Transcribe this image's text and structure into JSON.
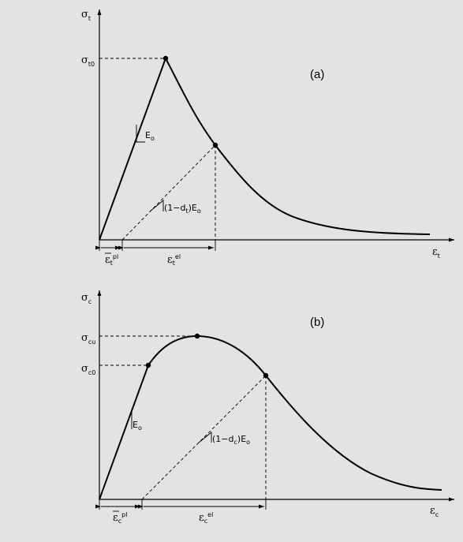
{
  "panel_a": {
    "tag": "(a)",
    "y_axis": {
      "sym": "σ",
      "sub": "t"
    },
    "x_axis": {
      "sym": "ε",
      "sub": "t"
    },
    "peak": {
      "sym": "σ",
      "sub": "t0"
    },
    "slope_initial": {
      "text": "E",
      "sub": "o"
    },
    "slope_unload": {
      "pre": "(1−d",
      "sub": "t",
      "post": ")E",
      "sub2": "o"
    },
    "strain_pl": {
      "sym": "ε",
      "sub": "t",
      "sup": "pl"
    },
    "strain_el": {
      "sym": "ε",
      "sub": "t",
      "sup": "el"
    }
  },
  "panel_b": {
    "tag": "(b)",
    "y_axis": {
      "sym": "σ",
      "sub": "c"
    },
    "x_axis": {
      "sym": "ε",
      "sub": "c"
    },
    "ultimate": {
      "sym": "σ",
      "sub": "cu"
    },
    "initial_yield": {
      "sym": "σ",
      "sub": "c0"
    },
    "slope_initial": {
      "text": "E",
      "sub": "o"
    },
    "slope_unload": {
      "pre": "(1−d",
      "sub": "c",
      "post": ")E",
      "sub2": "o"
    },
    "strain_pl": {
      "sym": "ε",
      "sub": "c",
      "sup": "pl"
    },
    "strain_el": {
      "sym": "ε",
      "sub": "c",
      "sup": "el"
    }
  },
  "colors": {
    "background": "#e3e3e3",
    "ink": "#000000"
  }
}
